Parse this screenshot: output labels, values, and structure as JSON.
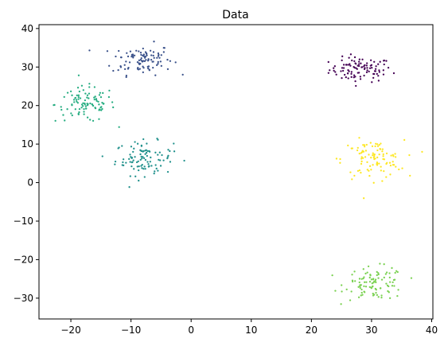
{
  "chart_data": {
    "type": "scatter",
    "title": "Data",
    "xlabel": "",
    "ylabel": "",
    "xlim": [
      -25.3,
      40.2
    ],
    "ylim": [
      -35.4,
      41.0
    ],
    "xticks": [
      -20,
      -10,
      0,
      10,
      20,
      30,
      40
    ],
    "yticks": [
      -30,
      -20,
      -10,
      0,
      10,
      20,
      30,
      40
    ],
    "grid": false,
    "marker_size": 1.6,
    "clusters": [
      {
        "color": "#440154",
        "center": [
          28.2,
          29.3
        ],
        "spread": [
          2.6,
          1.6
        ],
        "n": 100
      },
      {
        "color": "#3b528b",
        "center": [
          -8.2,
          32.0
        ],
        "spread": [
          2.5,
          2.0
        ],
        "n": 100
      },
      {
        "color": "#21918c",
        "center": [
          -7.8,
          6.3
        ],
        "spread": [
          2.4,
          2.2
        ],
        "n": 100
      },
      {
        "color": "#26ad81",
        "center": [
          -17.6,
          20.3
        ],
        "spread": [
          2.5,
          2.3
        ],
        "n": 100
      },
      {
        "color": "#7ad151",
        "center": [
          30.6,
          -26.2
        ],
        "spread": [
          2.5,
          2.1
        ],
        "n": 100
      },
      {
        "color": "#fde725",
        "center": [
          30.2,
          6.0
        ],
        "spread": [
          2.6,
          2.5
        ],
        "n": 100
      }
    ]
  }
}
